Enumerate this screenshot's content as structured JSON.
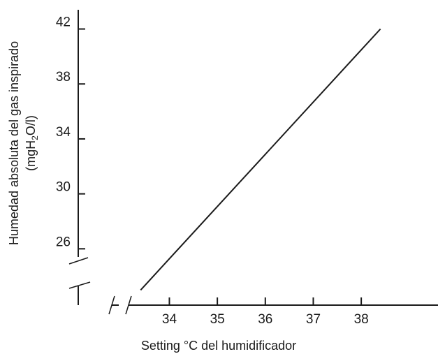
{
  "chart_data": {
    "type": "line",
    "title": "",
    "xlabel": "Setting °C del humidificador",
    "ylabel_line1": "Humedad absoluta del gas inspirado",
    "ylabel_line2": {
      "prefix": "(mgH",
      "sub": "2",
      "suffix": "O/l)"
    },
    "x_ticks": [
      "34",
      "35",
      "36",
      "37",
      "38"
    ],
    "y_ticks": [
      "26",
      "30",
      "34",
      "38",
      "42"
    ],
    "xlim": [
      32.1,
      39.6
    ],
    "ylim": [
      21.9,
      43.4
    ],
    "axis_breaks": {
      "x": true,
      "y": true
    },
    "grid": false,
    "series": [
      {
        "x": [
          33.4,
          38.4
        ],
        "y": [
          23.0,
          42.0
        ]
      }
    ]
  }
}
